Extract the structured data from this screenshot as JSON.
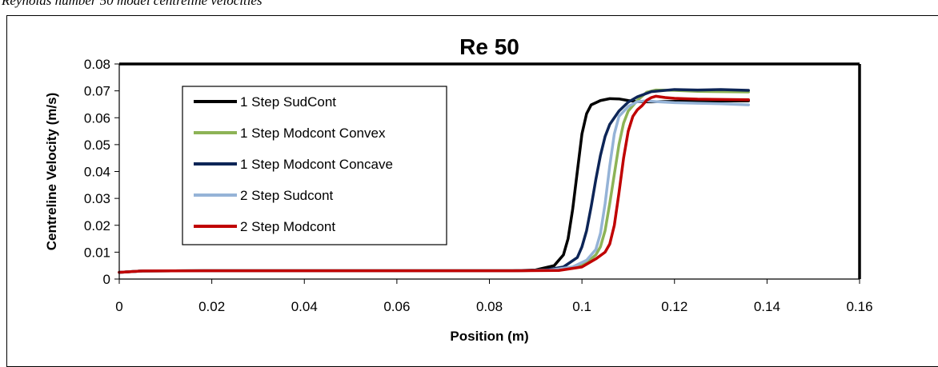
{
  "header_text": "Reynolds number 50 model centreline velocities",
  "chart_data": {
    "type": "line",
    "title": "Re 50",
    "xlabel": "Position (m)",
    "ylabel": "Centreline Velocity (m/s)",
    "xlim": [
      0,
      0.16
    ],
    "ylim": [
      0,
      0.08
    ],
    "xticks": [
      "0",
      "0.02",
      "0.04",
      "0.06",
      "0.08",
      "0.1",
      "0.12",
      "0.14",
      "0.16"
    ],
    "yticks": [
      "0",
      "0.01",
      "0.02",
      "0.03",
      "0.04",
      "0.05",
      "0.06",
      "0.07",
      "0.08"
    ],
    "grid": false,
    "legend_position": "left",
    "series": [
      {
        "name": "1 Step SudCont",
        "color": "#000000",
        "x": [
          0,
          0.005,
          0.02,
          0.06,
          0.085,
          0.09,
          0.094,
          0.096,
          0.097,
          0.098,
          0.099,
          0.1,
          0.101,
          0.102,
          0.104,
          0.106,
          0.108,
          0.11,
          0.112,
          0.115,
          0.12,
          0.13,
          0.136
        ],
        "y": [
          0.0025,
          0.003,
          0.0031,
          0.0031,
          0.0031,
          0.0034,
          0.005,
          0.009,
          0.015,
          0.026,
          0.04,
          0.054,
          0.0615,
          0.0648,
          0.0664,
          0.0671,
          0.067,
          0.0664,
          0.066,
          0.0659,
          0.0661,
          0.0662,
          0.0663
        ]
      },
      {
        "name": "1 Step Modcont Convex",
        "color": "#8db356",
        "x": [
          0,
          0.005,
          0.02,
          0.06,
          0.085,
          0.093,
          0.098,
          0.101,
          0.103,
          0.104,
          0.105,
          0.106,
          0.107,
          0.108,
          0.109,
          0.11,
          0.112,
          0.114,
          0.116,
          0.12,
          0.125,
          0.13,
          0.136
        ],
        "y": [
          0.0025,
          0.003,
          0.0031,
          0.0031,
          0.0031,
          0.0033,
          0.004,
          0.006,
          0.009,
          0.012,
          0.018,
          0.028,
          0.039,
          0.05,
          0.058,
          0.0625,
          0.0665,
          0.0695,
          0.0703,
          0.0702,
          0.0698,
          0.0697,
          0.0696
        ]
      },
      {
        "name": "1 Step Modcont Concave",
        "color": "#0d2557",
        "x": [
          0,
          0.005,
          0.02,
          0.06,
          0.085,
          0.092,
          0.096,
          0.099,
          0.1,
          0.101,
          0.102,
          0.103,
          0.104,
          0.105,
          0.106,
          0.108,
          0.11,
          0.112,
          0.115,
          0.12,
          0.125,
          0.13,
          0.136
        ],
        "y": [
          0.0025,
          0.003,
          0.0031,
          0.0031,
          0.0031,
          0.0033,
          0.0045,
          0.008,
          0.012,
          0.018,
          0.027,
          0.037,
          0.046,
          0.053,
          0.0575,
          0.0625,
          0.0658,
          0.0678,
          0.0697,
          0.0705,
          0.0703,
          0.0705,
          0.0702
        ]
      },
      {
        "name": "2 Step Sudcont",
        "color": "#95b3d7",
        "x": [
          0,
          0.005,
          0.02,
          0.06,
          0.085,
          0.093,
          0.098,
          0.101,
          0.103,
          0.104,
          0.105,
          0.106,
          0.107,
          0.108,
          0.11,
          0.112,
          0.114,
          0.116,
          0.12,
          0.125,
          0.13,
          0.136
        ],
        "y": [
          0.0025,
          0.003,
          0.0031,
          0.0031,
          0.0031,
          0.0033,
          0.0045,
          0.007,
          0.011,
          0.017,
          0.028,
          0.042,
          0.054,
          0.0605,
          0.0642,
          0.066,
          0.0663,
          0.066,
          0.0656,
          0.0654,
          0.0652,
          0.0648
        ]
      },
      {
        "name": "2 Step Modcont",
        "color": "#c00000",
        "x": [
          0,
          0.005,
          0.02,
          0.06,
          0.085,
          0.095,
          0.1,
          0.103,
          0.105,
          0.106,
          0.107,
          0.108,
          0.109,
          0.11,
          0.111,
          0.112,
          0.113,
          0.114,
          0.115,
          0.116,
          0.118,
          0.12,
          0.125,
          0.13,
          0.136
        ],
        "y": [
          0.0025,
          0.003,
          0.0031,
          0.0031,
          0.0031,
          0.0032,
          0.0045,
          0.0075,
          0.01,
          0.013,
          0.02,
          0.032,
          0.045,
          0.055,
          0.0605,
          0.063,
          0.0645,
          0.0665,
          0.0675,
          0.068,
          0.0675,
          0.0672,
          0.0669,
          0.0668,
          0.0667
        ]
      }
    ]
  }
}
